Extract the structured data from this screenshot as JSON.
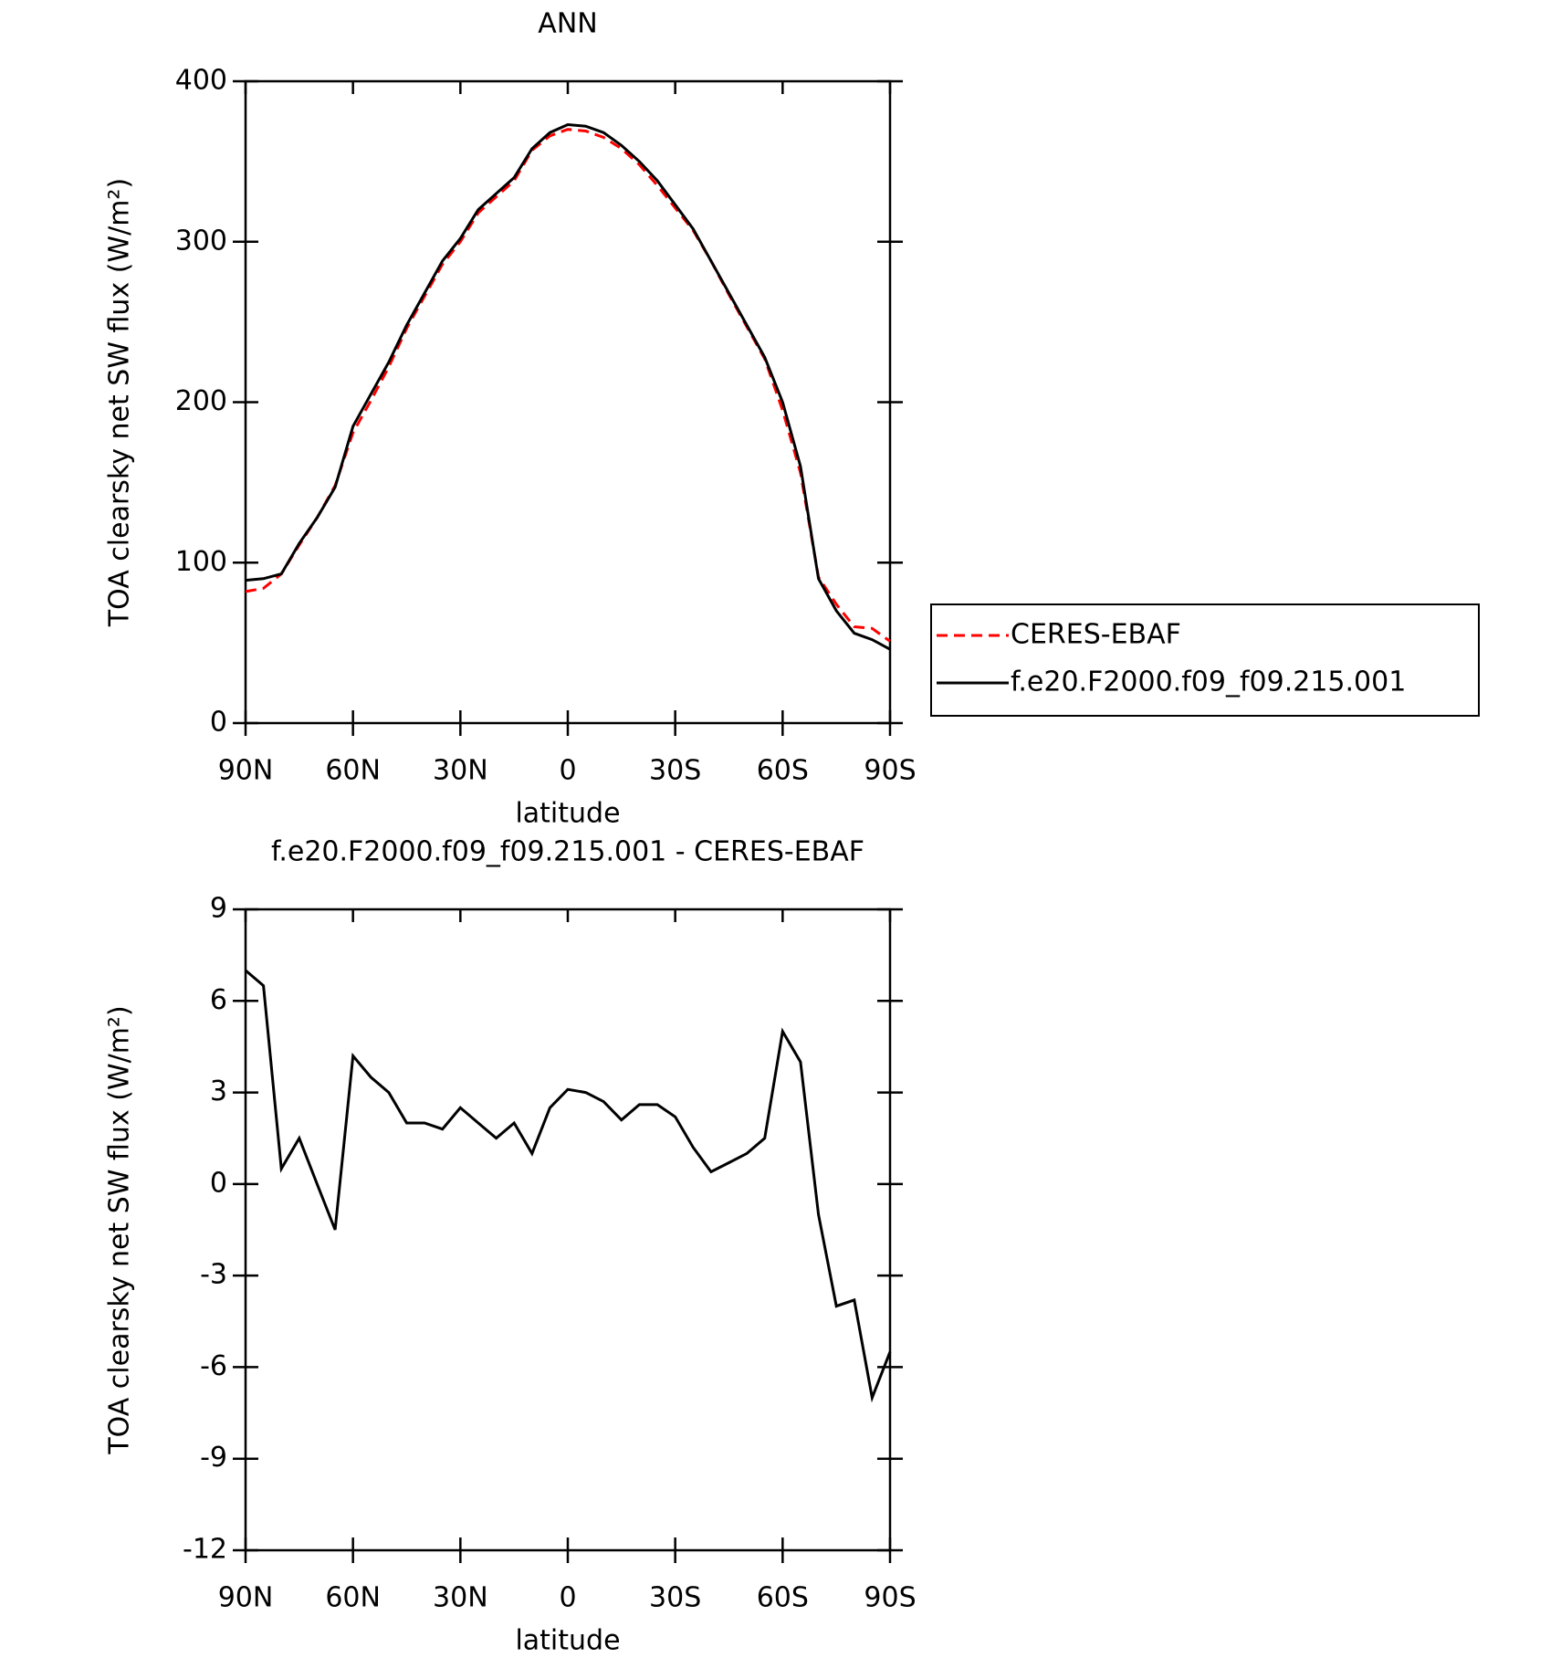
{
  "chart_data": [
    {
      "type": "line",
      "title": "ANN",
      "xlabel": "latitude",
      "ylabel": "TOA clearsky net SW flux (W/m²)",
      "x": [
        90,
        85,
        80,
        75,
        70,
        65,
        60,
        55,
        50,
        45,
        40,
        35,
        30,
        25,
        20,
        15,
        10,
        5,
        0,
        -5,
        -10,
        -15,
        -20,
        -25,
        -30,
        -35,
        -40,
        -45,
        -50,
        -55,
        -60,
        -65,
        -70,
        -75,
        -80,
        -85,
        -90
      ],
      "series": [
        {
          "name": "CERES-EBAF",
          "color": "#ff0000",
          "linestyle": "dashed",
          "values": [
            82,
            84,
            93,
            111,
            128,
            148,
            181,
            201,
            222,
            246,
            266,
            286,
            300,
            318,
            328,
            338,
            357,
            366,
            370,
            369,
            365,
            358,
            348,
            335,
            321,
            307,
            288,
            267,
            247,
            227,
            195,
            156,
            91,
            74,
            60,
            59,
            51
          ]
        },
        {
          "name": "f.e20.F2000.f09_f09.215.001",
          "color": "#000000",
          "linestyle": "solid",
          "values": [
            89,
            90,
            93,
            112,
            128,
            147,
            185,
            205,
            225,
            248,
            268,
            288,
            302,
            320,
            330,
            340,
            358,
            368,
            373,
            372,
            368,
            360,
            350,
            338,
            323,
            308,
            288,
            268,
            248,
            228,
            200,
            160,
            90,
            70,
            56,
            52,
            46
          ]
        }
      ],
      "xlim": [
        90,
        -90
      ],
      "xticks": [
        {
          "value": 90,
          "label": "90N"
        },
        {
          "value": 60,
          "label": "60N"
        },
        {
          "value": 30,
          "label": "30N"
        },
        0,
        {
          "value": -30,
          "label": "30S"
        },
        {
          "value": -60,
          "label": "60S"
        },
        {
          "value": -90,
          "label": "90S"
        }
      ],
      "ylim": [
        0,
        400
      ],
      "yticks": [
        0,
        100,
        200,
        300,
        400
      ],
      "legend": "right"
    },
    {
      "type": "line",
      "title": "f.e20.F2000.f09_f09.215.001 - CERES-EBAF",
      "xlabel": "latitude",
      "ylabel": "TOA clearsky net SW flux (W/m²)",
      "x": [
        90,
        85,
        80,
        75,
        70,
        65,
        60,
        55,
        50,
        45,
        40,
        35,
        30,
        25,
        20,
        15,
        10,
        5,
        0,
        -5,
        -10,
        -15,
        -20,
        -25,
        -30,
        -35,
        -40,
        -45,
        -50,
        -55,
        -60,
        -65,
        -70,
        -75,
        -80,
        -85,
        -90
      ],
      "values": [
        7,
        6.5,
        0.5,
        1.5,
        0,
        -1.5,
        4.2,
        3.5,
        3,
        2,
        2,
        1.8,
        2.5,
        2,
        1.5,
        2,
        1,
        2.5,
        3.1,
        3,
        2.7,
        2.1,
        2.6,
        2.6,
        2.2,
        1.2,
        0.4,
        0.7,
        1,
        1.5,
        5,
        4,
        -1,
        -4,
        -3.8,
        -7,
        -5.5
      ],
      "color": "#000000",
      "xlim": [
        90,
        -90
      ],
      "xticks": [
        {
          "value": 90,
          "label": "90N"
        },
        {
          "value": 60,
          "label": "60N"
        },
        {
          "value": 30,
          "label": "30N"
        },
        0,
        {
          "value": -30,
          "label": "30S"
        },
        {
          "value": -60,
          "label": "60S"
        },
        {
          "value": -90,
          "label": "90S"
        }
      ],
      "ylim": [
        -12,
        9
      ],
      "yticks": [
        -12,
        -9,
        -6,
        -3,
        0,
        3,
        6,
        9
      ]
    }
  ]
}
